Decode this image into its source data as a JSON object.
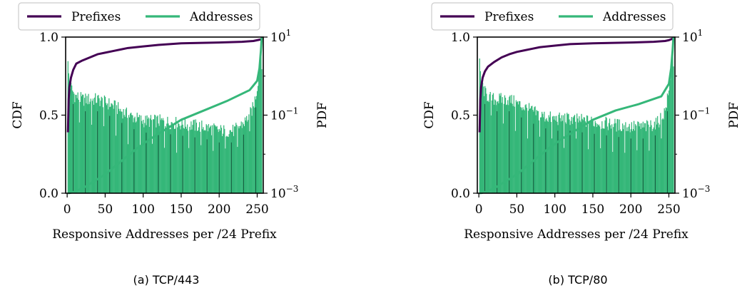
{
  "chart_data": [
    {
      "type": "line+histogram",
      "caption": "(a) TCP/443",
      "xlabel": "Responsive Addresses per /24 Prefix",
      "ylabel_left": "CDF",
      "ylabel_right": "PDF",
      "xlim": [
        0,
        256
      ],
      "ylim_left": [
        0.0,
        1.0
      ],
      "ylim_right_log10": [
        -3,
        1
      ],
      "x_ticks": [
        "0",
        "50",
        "100",
        "150",
        "200",
        "250"
      ],
      "y_left_ticks": [
        "0.0",
        "0.5",
        "1.0"
      ],
      "y_right_ticks": [
        {
          "base": "10",
          "exp": "−3"
        },
        {
          "base": "10",
          "exp": "−1"
        },
        {
          "base": "10",
          "exp": "1"
        }
      ],
      "legend": [
        "Prefixes",
        "Addresses"
      ],
      "legend_placement": "top",
      "colors": {
        "Prefixes": "#440154",
        "Addresses": "#35b779"
      },
      "series": [
        {
          "name": "Prefixes",
          "axis": "left",
          "x": [
            1,
            2,
            3,
            5,
            8,
            12,
            20,
            30,
            40,
            50,
            60,
            70,
            80,
            100,
            120,
            150,
            200,
            230,
            245,
            250,
            255
          ],
          "y": [
            0.39,
            0.6,
            0.68,
            0.74,
            0.79,
            0.83,
            0.85,
            0.87,
            0.89,
            0.9,
            0.91,
            0.92,
            0.93,
            0.94,
            0.95,
            0.96,
            0.965,
            0.97,
            0.975,
            0.98,
            0.985
          ]
        },
        {
          "name": "Addresses",
          "axis": "left",
          "x": [
            1,
            5,
            10,
            20,
            30,
            50,
            70,
            90,
            110,
            130,
            150,
            180,
            210,
            240,
            245,
            250,
            253,
            255,
            256
          ],
          "y": [
            0.0,
            0.003,
            0.01,
            0.03,
            0.06,
            0.12,
            0.2,
            0.28,
            0.35,
            0.41,
            0.47,
            0.53,
            0.59,
            0.66,
            0.69,
            0.72,
            0.8,
            0.92,
            1.0
          ]
        },
        {
          "name": "PDF",
          "axis": "right",
          "kind": "histogram",
          "bin_width": 1,
          "profile_x": [
            1,
            3,
            10,
            20,
            40,
            60,
            80,
            100,
            120,
            140,
            160,
            180,
            200,
            220,
            235,
            245,
            250,
            254,
            256
          ],
          "profile_log10_pdf": [
            0.3,
            -0.2,
            -0.5,
            -0.6,
            -0.6,
            -0.75,
            -1.0,
            -1.15,
            -1.15,
            -1.2,
            -1.25,
            -1.3,
            -1.4,
            -1.4,
            -1.15,
            -0.8,
            -0.3,
            0.5,
            0.95
          ]
        }
      ]
    },
    {
      "type": "line+histogram",
      "caption": "(b) TCP/80",
      "xlabel": "Responsive Addresses per /24 Prefix",
      "ylabel_left": "CDF",
      "ylabel_right": "PDF",
      "xlim": [
        0,
        256
      ],
      "ylim_left": [
        0.0,
        1.0
      ],
      "ylim_right_log10": [
        -3,
        1
      ],
      "x_ticks": [
        "0",
        "50",
        "100",
        "150",
        "200",
        "250"
      ],
      "y_left_ticks": [
        "0.0",
        "0.5",
        "1.0"
      ],
      "y_right_ticks": [
        {
          "base": "10",
          "exp": "−3"
        },
        {
          "base": "10",
          "exp": "−1"
        },
        {
          "base": "10",
          "exp": "1"
        }
      ],
      "legend": [
        "Prefixes",
        "Addresses"
      ],
      "legend_placement": "top",
      "colors": {
        "Prefixes": "#440154",
        "Addresses": "#35b779"
      },
      "series": [
        {
          "name": "Prefixes",
          "axis": "left",
          "x": [
            1,
            2,
            3,
            5,
            8,
            12,
            20,
            30,
            40,
            50,
            60,
            70,
            80,
            100,
            120,
            150,
            200,
            230,
            245,
            250,
            255
          ],
          "y": [
            0.39,
            0.6,
            0.68,
            0.74,
            0.78,
            0.81,
            0.84,
            0.87,
            0.89,
            0.905,
            0.915,
            0.925,
            0.935,
            0.945,
            0.955,
            0.96,
            0.965,
            0.97,
            0.975,
            0.98,
            0.99
          ]
        },
        {
          "name": "Addresses",
          "axis": "left",
          "x": [
            1,
            5,
            10,
            20,
            30,
            50,
            70,
            90,
            110,
            130,
            150,
            180,
            210,
            240,
            245,
            250,
            253,
            255,
            256
          ],
          "y": [
            0.0,
            0.003,
            0.01,
            0.03,
            0.06,
            0.12,
            0.2,
            0.28,
            0.35,
            0.41,
            0.47,
            0.53,
            0.57,
            0.62,
            0.66,
            0.7,
            0.8,
            0.92,
            1.0
          ]
        },
        {
          "name": "PDF",
          "axis": "right",
          "kind": "histogram",
          "bin_width": 1,
          "profile_x": [
            1,
            3,
            10,
            20,
            40,
            60,
            80,
            100,
            120,
            140,
            160,
            180,
            200,
            220,
            235,
            245,
            250,
            254,
            256
          ],
          "profile_log10_pdf": [
            0.3,
            -0.2,
            -0.5,
            -0.6,
            -0.6,
            -0.8,
            -1.0,
            -1.1,
            -1.1,
            -1.15,
            -1.2,
            -1.25,
            -1.3,
            -1.3,
            -1.2,
            -0.9,
            -0.4,
            0.4,
            0.95
          ]
        }
      ]
    }
  ]
}
